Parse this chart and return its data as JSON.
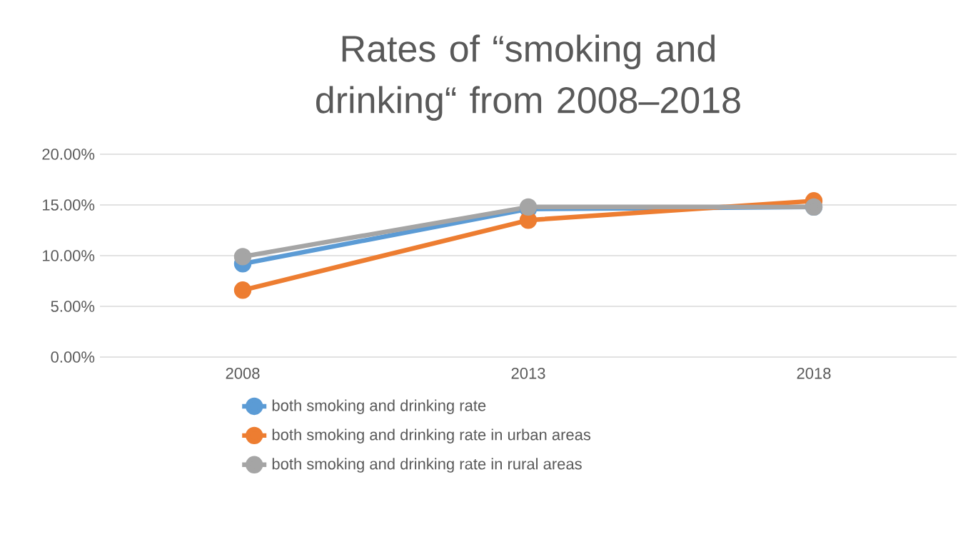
{
  "chart_data": {
    "type": "line",
    "title": "Rates of “smoking and drinking“ from 2008–2018",
    "categories": [
      "2008",
      "2013",
      "2018"
    ],
    "series": [
      {
        "name": "both smoking and drinking rate",
        "color": "#5b9bd5",
        "values": [
          9.2,
          14.6,
          14.8
        ]
      },
      {
        "name": "both smoking and drinking rate in urban areas",
        "color": "#ed7d31",
        "values": [
          6.6,
          13.5,
          15.4
        ]
      },
      {
        "name": "both smoking and drinking rate in rural areas",
        "color": "#a5a5a5",
        "values": [
          9.9,
          14.8,
          14.8
        ]
      }
    ],
    "ylim": [
      0,
      20
    ],
    "yticks": [
      {
        "value": 0,
        "label": "0.00%"
      },
      {
        "value": 5,
        "label": "5.00%"
      },
      {
        "value": 10,
        "label": "10.00%"
      },
      {
        "value": 15,
        "label": "15.00%"
      },
      {
        "value": 20,
        "label": "20.00%"
      }
    ],
    "grid": "y",
    "legend": "bottom",
    "marker": "circle",
    "line_style": "solid"
  }
}
